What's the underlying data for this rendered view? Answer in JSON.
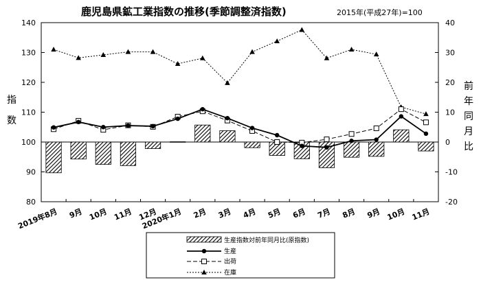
{
  "chart_data": {
    "type": "bar+line",
    "title": "鹿児島県鉱工業指数の推移(季節調整済指数)",
    "subtitle": "2015年(平成27年)=100",
    "ylabel_left": "指数",
    "ylabel_right": "前年同月比",
    "ylim_left": [
      80,
      140
    ],
    "yticks_left": [
      80,
      90,
      100,
      110,
      120,
      130,
      140
    ],
    "ylim_right": [
      -20,
      40
    ],
    "yticks_right": [
      -20,
      -10,
      0,
      10,
      20,
      30,
      40
    ],
    "categories": [
      "2019年8月",
      "9月",
      "10月",
      "11月",
      "12月",
      "2020年1月",
      "2月",
      "3月",
      "4月",
      "5月",
      "6月",
      "7月",
      "8月",
      "9月",
      "10月",
      "11月"
    ],
    "grid": false,
    "legend_position": "bottom",
    "series": [
      {
        "name": "生産指数対前年同月比(原指数)",
        "type": "bar",
        "axis": "right",
        "values": [
          -10.3,
          -5.7,
          -7.5,
          -7.9,
          -2.2,
          0.1,
          5.7,
          3.8,
          -1.9,
          -4.5,
          -5.6,
          -8.6,
          -5.1,
          -4.8,
          4.1,
          -3.0
        ]
      },
      {
        "name": "生産",
        "type": "line",
        "axis": "left",
        "marker": "circle",
        "values": [
          104.9,
          106.7,
          105.0,
          105.5,
          105.3,
          107.8,
          111.0,
          108.0,
          104.7,
          102.3,
          98.7,
          98.2,
          100.4,
          100.8,
          108.6,
          102.8
        ]
      },
      {
        "name": "出荷",
        "type": "line",
        "axis": "left",
        "marker": "square",
        "values": [
          104.3,
          107.1,
          104.1,
          105.6,
          105.1,
          108.5,
          110.3,
          107.2,
          103.7,
          100.0,
          99.8,
          100.9,
          102.7,
          104.6,
          111.0,
          106.6
        ]
      },
      {
        "name": "在庫",
        "type": "line",
        "axis": "left",
        "marker": "triangle",
        "values": [
          131.0,
          128.2,
          129.2,
          130.2,
          130.2,
          126.2,
          128.1,
          119.8,
          130.2,
          133.8,
          137.6,
          128.1,
          131.0,
          129.4,
          111.7,
          109.4
        ]
      }
    ]
  }
}
